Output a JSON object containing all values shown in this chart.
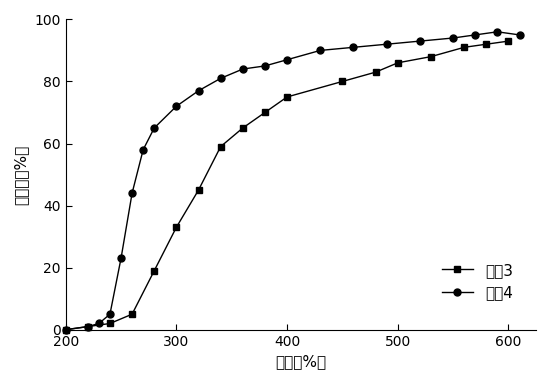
{
  "series1_label": "实例3",
  "series2_label": "实例4",
  "series1_x": [
    200,
    220,
    240,
    260,
    280,
    300,
    320,
    340,
    360,
    380,
    400,
    450,
    480,
    500,
    530,
    560,
    580,
    600
  ],
  "series1_y": [
    0,
    1,
    2,
    5,
    19,
    33,
    45,
    59,
    65,
    70,
    75,
    80,
    83,
    86,
    88,
    91,
    92,
    93
  ],
  "series2_x": [
    200,
    220,
    230,
    240,
    250,
    260,
    270,
    280,
    300,
    320,
    340,
    360,
    380,
    400,
    430,
    460,
    490,
    520,
    550,
    570,
    590,
    610
  ],
  "series2_y": [
    0,
    1,
    2,
    5,
    23,
    44,
    58,
    65,
    72,
    77,
    81,
    84,
    85,
    87,
    90,
    91,
    92,
    93,
    94,
    95,
    96,
    95
  ],
  "xlabel": "温度（%）",
  "ylabel": "转化率（%）",
  "xlim": [
    200,
    625
  ],
  "ylim": [
    0,
    100
  ],
  "xticks": [
    200,
    300,
    400,
    500,
    600
  ],
  "yticks": [
    0,
    20,
    40,
    60,
    80,
    100
  ],
  "line_color": "#000000",
  "marker1": "s",
  "marker2": "o",
  "markersize": 5,
  "linewidth": 1.0,
  "background_color": "#ffffff"
}
